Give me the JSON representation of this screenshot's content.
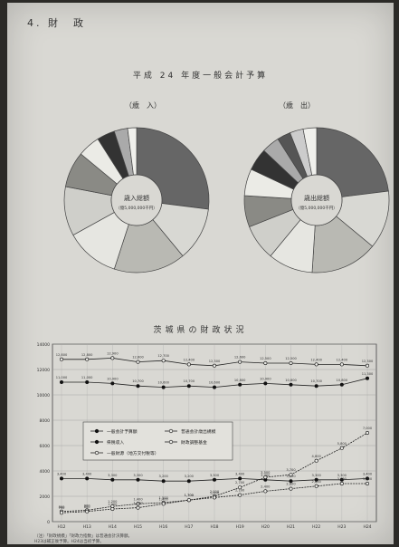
{
  "section": {
    "title": "4. 財　政"
  },
  "budget": {
    "title": "平成 24 年度一般会計予算",
    "revenue": {
      "heading": "（歳　入）",
      "center_title": "歳入総額",
      "center_sub": "（億5,000,000千円）"
    },
    "expenditure": {
      "heading": "（歳　出）",
      "center_title": "歳出総額",
      "center_sub": "（億5,000,000千円）"
    }
  },
  "finance_chart": {
    "title": "茨城県の財政状況",
    "notes": [
      "（注）「財政規模」「財政力指数」は普通会計決算額。",
      "H23は補正後予算。H24は当初予算。"
    ]
  },
  "colors": {
    "paper": "#d9d8d3",
    "ink": "#333333",
    "dark_segment": "#555555"
  },
  "chart_data": {
    "type": "line",
    "title": "茨城県の財政状況",
    "x": [
      "H12",
      "H13",
      "H14",
      "H15",
      "H16",
      "H17",
      "H18",
      "H19",
      "H20",
      "H21",
      "H22",
      "H23",
      "H24"
    ],
    "ylim": [
      0,
      14000
    ],
    "yticks": [
      0,
      2000,
      4000,
      6000,
      8000,
      10000,
      12000,
      14000
    ],
    "grid": true,
    "legend_position": "center-left",
    "series": [
      {
        "name": "一般会計予算額",
        "marker": "filled",
        "values": [
          11000,
          11000,
          10900,
          10700,
          10600,
          10700,
          10600,
          10800,
          10900,
          10800,
          10700,
          10800,
          11300
        ]
      },
      {
        "name": "普通会計歳出規模",
        "marker": "open",
        "values": [
          12800,
          12800,
          12900,
          12600,
          12700,
          12400,
          12300,
          12600,
          12500,
          12500,
          12400,
          12400,
          12300
        ]
      },
      {
        "name": "県税収入",
        "marker": "filled",
        "values": [
          3400,
          3400,
          3300,
          3300,
          3200,
          3200,
          3300,
          3400,
          3300,
          3200,
          3300,
          3300,
          3400
        ]
      },
      {
        "name": "財政調整基金",
        "marker": "open",
        "values": [
          800,
          900,
          1200,
          1400,
          1500,
          1700,
          2000,
          2700,
          3500,
          3700,
          4800,
          5800,
          7000
        ]
      },
      {
        "name": "一般財源（地方交付税等）",
        "marker": "open",
        "values": [
          700,
          800,
          1000,
          1100,
          1400,
          1700,
          1900,
          2100,
          2400,
          2600,
          2800,
          3000,
          3000
        ]
      }
    ]
  }
}
